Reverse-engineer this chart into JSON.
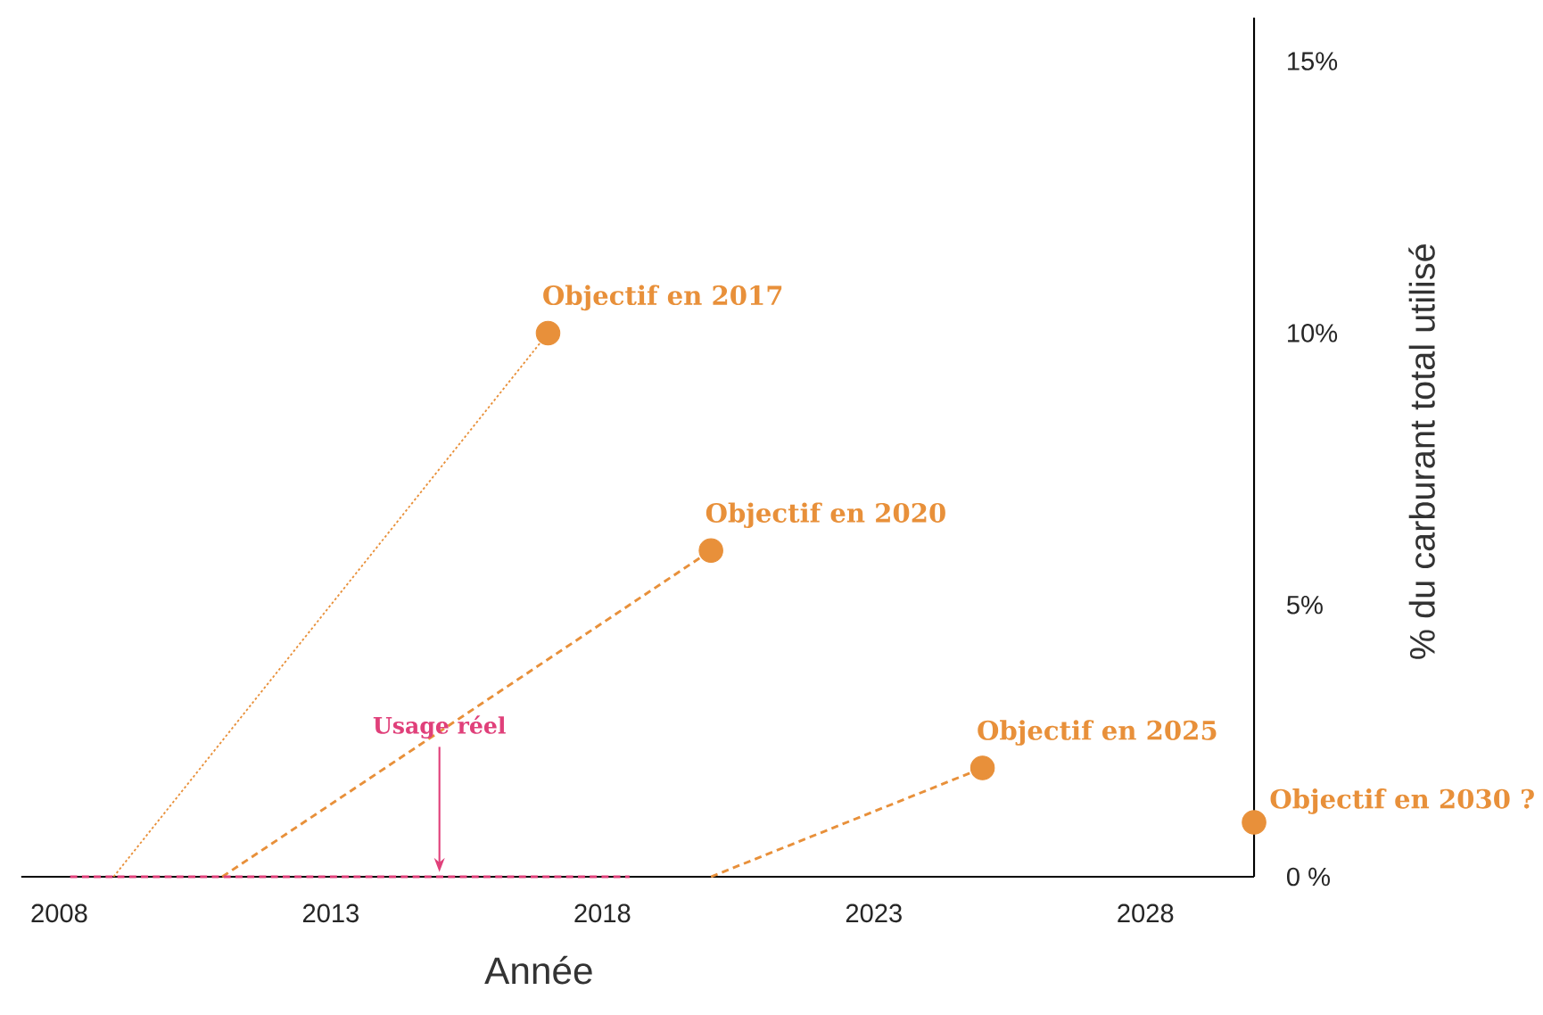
{
  "chart_data": {
    "type": "scatter",
    "xlabel": "Année",
    "ylabel": "% du carburant total utilisé",
    "xlim": [
      2007.3,
      2030
    ],
    "ylim": [
      0,
      15.8
    ],
    "xticks": [
      2008,
      2013,
      2018,
      2023,
      2028
    ],
    "yticks": [
      {
        "value": 0,
        "label": "0 %"
      },
      {
        "value": 5,
        "label": "5%"
      },
      {
        "value": 10,
        "label": "10%"
      },
      {
        "value": 15,
        "label": "15%"
      }
    ],
    "grid": false,
    "series": [
      {
        "type": "line",
        "line_style": "dotted",
        "marker": "none",
        "color": "#e8903a",
        "x": [
          2009,
          2017
        ],
        "values": [
          0,
          10
        ]
      },
      {
        "type": "line",
        "line_style": "dashed",
        "marker": "none",
        "color": "#e8903a",
        "x": [
          2011,
          2020
        ],
        "values": [
          0,
          6
        ]
      },
      {
        "type": "line",
        "line_style": "dashed",
        "marker": "none",
        "color": "#e8903a",
        "x": [
          2020,
          2025
        ],
        "values": [
          0,
          2
        ]
      },
      {
        "type": "line",
        "line_style": "dashed",
        "marker": "none",
        "color": "#e0407a",
        "x": [
          2008.2,
          2018.5
        ],
        "values": [
          0,
          0
        ]
      },
      {
        "type": "scatter",
        "marker": "circle",
        "color": "#e8903a",
        "x": [
          2017,
          2020,
          2025,
          2030
        ],
        "values": [
          10,
          6,
          2,
          1
        ]
      }
    ],
    "annotations": [
      {
        "text": "Objectif en 2017",
        "x": 2017,
        "y": 10
      },
      {
        "text": "Objectif en 2020",
        "x": 2020,
        "y": 6
      },
      {
        "text": "Objectif en 2025",
        "x": 2025,
        "y": 2
      },
      {
        "text": "Objectif en 2030 ?",
        "x": 2030,
        "y": 1
      },
      {
        "text": "Usage réel",
        "x": 2015,
        "y": 0
      }
    ]
  }
}
